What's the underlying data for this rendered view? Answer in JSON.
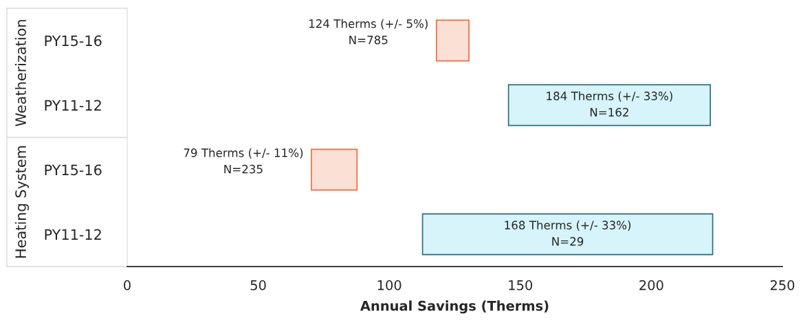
{
  "chart_data": {
    "type": "bar",
    "orientation": "horizontal",
    "categories": [
      "PY15-16",
      "PY11-12",
      "PY15-16",
      "PY11-12"
    ],
    "base": [
      118.0,
      145.5,
      70.3,
      112.7
    ],
    "values": [
      12.4,
      77.0,
      17.4,
      110.7
    ],
    "colors": [
      "#fbe0d6",
      "#d6f4fa",
      "#fbe0d6",
      "#d6f4fa"
    ],
    "annotations": [
      "Weatherization",
      "Heating System",
      "124 Therms (+/- 5%)\nN=785",
      "184 Therms (+/- 33%)\nN=162",
      "79 Therms (+/- 11%)\nN=235",
      "168 Therms (+/- 33%)\nN=29"
    ],
    "xlabel": "Annual Savings (Therms)",
    "xlim": [
      0,
      250
    ],
    "xticks": [
      0,
      50,
      100,
      150,
      200,
      250
    ],
    "grid": false,
    "legend": false
  }
}
